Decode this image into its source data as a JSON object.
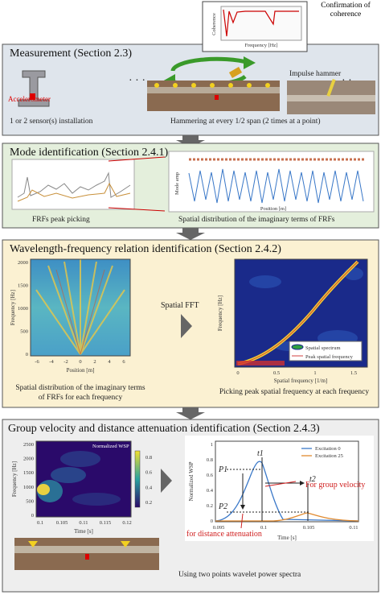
{
  "coherence": {
    "title": "Confirmation of coherence",
    "x_label": "Frequency [Hz]",
    "y_label": "Coherence"
  },
  "measurement": {
    "title": "Measurement (Section 2.3)",
    "hammer": "Impulse hammer",
    "sensor": "Accelerometer",
    "caption_left": "1 or 2 sensor(s) installation",
    "caption_right": "Hammering at every 1/2 span (2 times at a point)"
  },
  "mode": {
    "title": "Mode identification (Section 2.4.1)",
    "caption_left": "FRFs peak picking",
    "caption_right": "Spatial distribution of the imaginary terms of FRFs",
    "y_label_right": "Mode amp",
    "x_label_right": "Position [m]"
  },
  "wavelength": {
    "title": "Wavelength-frequency relation identification (Section 2.4.2)",
    "arrow_label": "Spatial FFT",
    "left": {
      "y_label": "Frequency [Hz]",
      "x_label": "Position [m]",
      "yticks": [
        "0",
        "500",
        "1000",
        "1500",
        "2000"
      ],
      "xticks": [
        "-6",
        "-4",
        "-2",
        "0",
        "2",
        "4",
        "6"
      ],
      "caption": [
        "Spatial distribution of the imaginary terms",
        "of FRFs for each frequency"
      ]
    },
    "right": {
      "y_label": "Frequency [Hz]",
      "x_label": "Spatial frequency [1/m]",
      "xticks": [
        "0",
        "0.5",
        "1",
        "1.5"
      ],
      "legend": [
        "Spatial spectrum",
        "Peak spatial frequency"
      ],
      "caption": "Picking peak spatial frequency at each frequency"
    }
  },
  "group": {
    "title": "Group velocity and distance attenuation identification (Section 2.4.3)",
    "left": {
      "y_label": "Frequency [Hz]",
      "x_label": "Time [s]",
      "yticks": [
        "0",
        "500",
        "1000",
        "1500",
        "2000",
        "2500"
      ],
      "xticks": [
        "0.1",
        "0.105",
        "0.11",
        "0.115",
        "0.12"
      ],
      "colorbar_label": "Normalized WSP",
      "colorbar_ticks": [
        "0.2",
        "0.4",
        "0.6",
        "0.8"
      ]
    },
    "right": {
      "y_label": "Normalized WSP",
      "x_label": "Time [s]",
      "xticks": [
        "0.095",
        "0.1",
        "0.105",
        "0.11"
      ],
      "yticks": [
        "0",
        "0.2",
        "0.4",
        "0.6",
        "0.8",
        "1"
      ],
      "legend": [
        "Excitation 0",
        "Excitation 25"
      ],
      "p1": "P1",
      "p2": "P2",
      "t1": "t1",
      "t2": "t2"
    },
    "annotation_velocity": "For group velocity",
    "annotation_attenuation": "for distance attenuation",
    "caption": "Using two points wavelet power spectra"
  }
}
